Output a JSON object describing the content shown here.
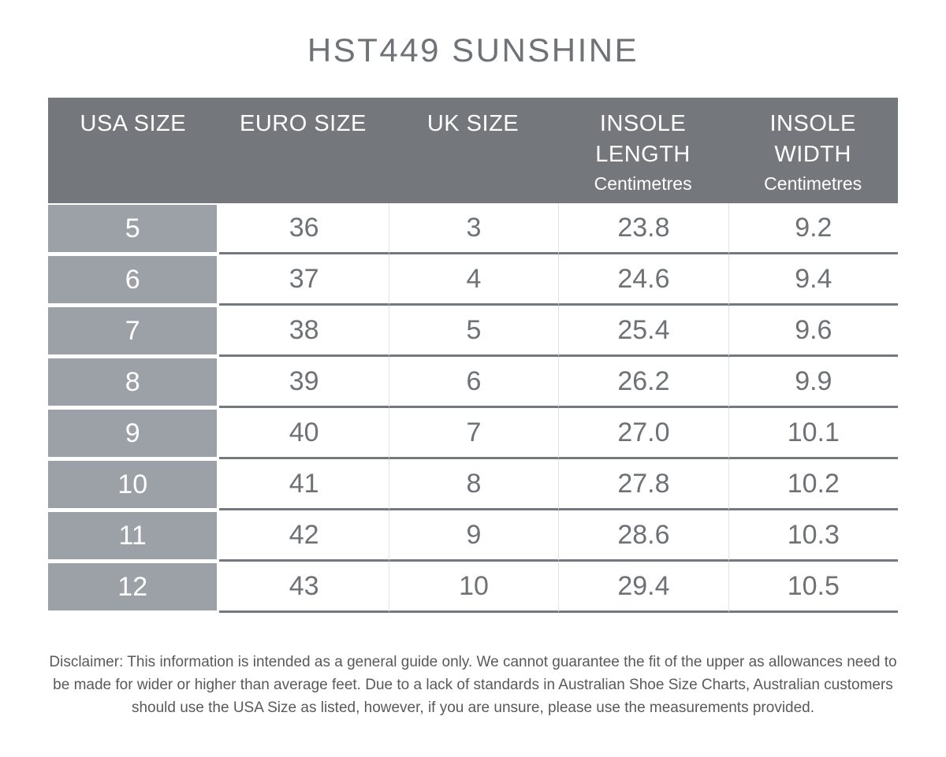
{
  "title": "HST449 SUNSHINE",
  "chart_data": {
    "type": "table",
    "title": "HST449 SUNSHINE",
    "columns": [
      {
        "label": "USA SIZE",
        "sublabel": ""
      },
      {
        "label": "EURO SIZE",
        "sublabel": ""
      },
      {
        "label": "UK SIZE",
        "sublabel": ""
      },
      {
        "label": "INSOLE LENGTH",
        "sublabel": "Centimetres"
      },
      {
        "label": "INSOLE WIDTH",
        "sublabel": "Centimetres"
      }
    ],
    "rows": [
      [
        "5",
        "36",
        "3",
        "23.8",
        "9.2"
      ],
      [
        "6",
        "37",
        "4",
        "24.6",
        "9.4"
      ],
      [
        "7",
        "38",
        "5",
        "25.4",
        "9.6"
      ],
      [
        "8",
        "39",
        "6",
        "26.2",
        "9.9"
      ],
      [
        "9",
        "40",
        "7",
        "27.0",
        "10.1"
      ],
      [
        "10",
        "41",
        "8",
        "27.8",
        "10.2"
      ],
      [
        "11",
        "42",
        "9",
        "28.6",
        "10.3"
      ],
      [
        "12",
        "43",
        "10",
        "29.4",
        "10.5"
      ]
    ],
    "layout": {
      "header_position": "top",
      "row_label_column": "USA SIZE",
      "grid": "horizontal row dividers, faint vertical column dividers"
    }
  },
  "disclaimer": "Disclaimer: This information is intended as a general guide only. We cannot guarantee the fit of the upper as allowances need to be made for wider or higher than average feet. Due to a lack of standards in Australian Shoe Size Charts, Australian customers should use the USA Size as listed, however, if you are unsure, please use the measurements provided.",
  "colors": {
    "header_bg": "#74777B",
    "header_text": "#FFFFFF",
    "row_label_bg": "#9BA1A7",
    "row_label_text": "#FFFFFF",
    "data_text": "#6E7175",
    "row_divider": "#75797D",
    "column_divider": "#E2E3E5",
    "title_text": "#6F7276",
    "disclaimer_text": "#58595B",
    "background": "#FFFFFF"
  }
}
